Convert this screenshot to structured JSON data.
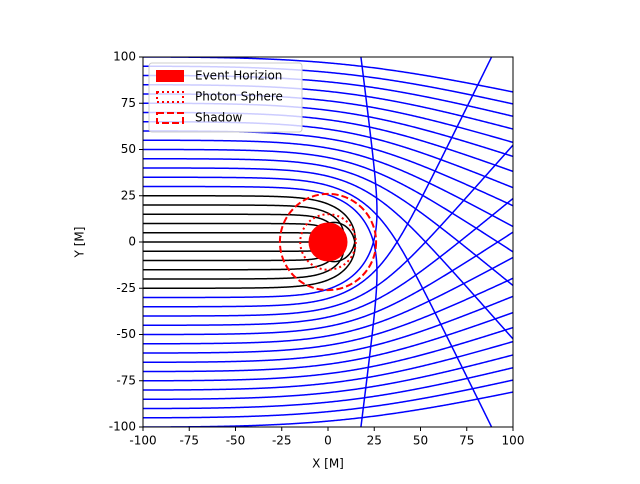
{
  "chart_data": {
    "type": "geodesics",
    "xlabel": "X [M]",
    "ylabel": "Y [M]",
    "xlim": [
      -100,
      100
    ],
    "ylim": [
      -100,
      100
    ],
    "xticks": [
      -100,
      -75,
      -50,
      -25,
      0,
      25,
      50,
      75,
      100
    ],
    "yticks": [
      -100,
      -75,
      -50,
      -25,
      0,
      25,
      50,
      75,
      100
    ],
    "impact_parameters": [
      -100,
      -95,
      -90,
      -85,
      -80,
      -75,
      -70,
      -65,
      -60,
      -55,
      -50,
      -45,
      -40,
      -35,
      -30,
      -25,
      -20,
      -15,
      -10,
      -5,
      0,
      5,
      10,
      15,
      20,
      25,
      30,
      35,
      40,
      45,
      50,
      55,
      60,
      65,
      70,
      75,
      80,
      85,
      90,
      95,
      100
    ],
    "captured_color": "#000000",
    "escaped_color": "#0000ff",
    "circles": [
      {
        "name": "Event Horizion",
        "radius": 10,
        "style": "filled",
        "color": "#ff0000"
      },
      {
        "name": "Photon Sphere",
        "radius": 15,
        "style": "dotted",
        "color": "#ff0000"
      },
      {
        "name": "Shadow",
        "radius": 26,
        "style": "dashed",
        "color": "#ff0000"
      }
    ],
    "legend": "upper left"
  }
}
